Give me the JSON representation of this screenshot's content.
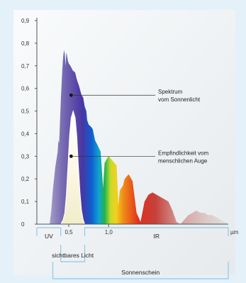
{
  "chart_data": {
    "type": "area",
    "title": "",
    "xlabel": "",
    "ylabel": "",
    "xunit": "µm",
    "xlim": [
      0.1,
      2.5
    ],
    "ylim": [
      0,
      0.9
    ],
    "yticks": [
      "0",
      "0,1",
      "0,2",
      "0,3",
      "0,4",
      "0,5",
      "0,6",
      "0,7",
      "0,8",
      "0,9"
    ],
    "xticks": [
      {
        "value": 0.5,
        "label": "0,5"
      },
      {
        "value": 1.0,
        "label": "1,0"
      }
    ],
    "grid": false,
    "series": [
      {
        "name": "Spektrum vom Sonnenlicht",
        "x": [
          0.26,
          0.28,
          0.3,
          0.33,
          0.36,
          0.37,
          0.38,
          0.39,
          0.4,
          0.41,
          0.42,
          0.43,
          0.44,
          0.45,
          0.46,
          0.47,
          0.48,
          0.49,
          0.5,
          0.52,
          0.55,
          0.58,
          0.6,
          0.63,
          0.66,
          0.68,
          0.7,
          0.72,
          0.73,
          0.75,
          0.78,
          0.8,
          0.83,
          0.86,
          0.9,
          0.93,
          0.95,
          0.98,
          1.0,
          1.05,
          1.1,
          1.12,
          1.14,
          1.18,
          1.2,
          1.25,
          1.3,
          1.35,
          1.4,
          1.45,
          1.5,
          1.55,
          1.6,
          1.65,
          1.7,
          1.75,
          1.8,
          1.85,
          1.9,
          1.95,
          2.0,
          2.05,
          2.1,
          2.15,
          2.2,
          2.25,
          2.3,
          2.35,
          2.4,
          2.45,
          2.5
        ],
        "y": [
          0.0,
          0.06,
          0.15,
          0.25,
          0.32,
          0.37,
          0.36,
          0.45,
          0.55,
          0.62,
          0.69,
          0.74,
          0.77,
          0.75,
          0.7,
          0.76,
          0.74,
          0.72,
          0.71,
          0.7,
          0.68,
          0.67,
          0.64,
          0.61,
          0.57,
          0.56,
          0.52,
          0.5,
          0.46,
          0.44,
          0.43,
          0.42,
          0.37,
          0.35,
          0.32,
          0.16,
          0.27,
          0.29,
          0.3,
          0.28,
          0.26,
          0.08,
          0.15,
          0.17,
          0.2,
          0.22,
          0.19,
          0.05,
          0.01,
          0.1,
          0.13,
          0.14,
          0.13,
          0.12,
          0.11,
          0.1,
          0.06,
          0.01,
          0.0,
          0.02,
          0.04,
          0.05,
          0.06,
          0.05,
          0.05,
          0.04,
          0.04,
          0.03,
          0.02,
          0.01,
          0.0
        ]
      },
      {
        "name": "Empfindlichkeit vom menschlichen Auge",
        "x": [
          0.4,
          0.43,
          0.45,
          0.47,
          0.49,
          0.51,
          0.53,
          0.555,
          0.58,
          0.6,
          0.62,
          0.64,
          0.66,
          0.68,
          0.7
        ],
        "y": [
          0.0,
          0.02,
          0.05,
          0.13,
          0.26,
          0.39,
          0.47,
          0.5,
          0.47,
          0.39,
          0.26,
          0.14,
          0.06,
          0.02,
          0.0
        ]
      }
    ],
    "annotations": [
      {
        "lines": [
          "Spektrum",
          "vom Sonnenlicht"
        ],
        "x": 0.53,
        "y": 0.57
      },
      {
        "lines": [
          "Empfindlichkeit vom",
          "menschlichen Auge"
        ],
        "x": 0.53,
        "y": 0.3
      }
    ],
    "ranges": [
      {
        "label": "UV",
        "from": 0.1,
        "to": 0.4
      },
      {
        "label": "IR",
        "from": 0.7,
        "to": 2.5
      },
      {
        "label": "sichtbares Licht",
        "from": 0.4,
        "to": 0.7
      },
      {
        "label": "Sonnenschein",
        "from": 0.3,
        "to": 2.5
      }
    ]
  }
}
